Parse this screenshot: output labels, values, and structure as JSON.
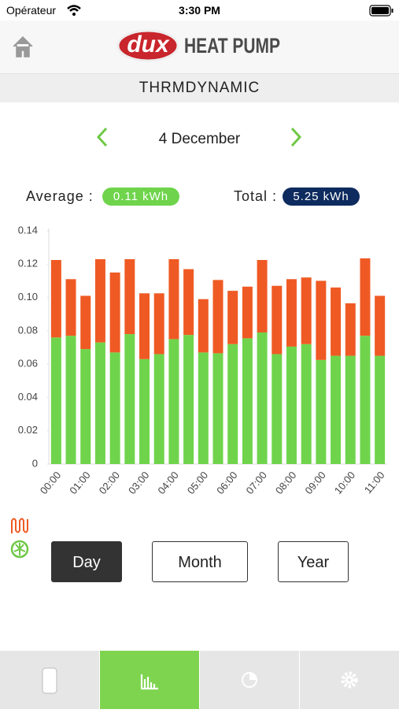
{
  "status_bar": {
    "carrier": "Opérateur",
    "time": "3:30 PM"
  },
  "header": {
    "logo": "dux",
    "title": "HEAT PUMP"
  },
  "subheader": "THRMDYNAMIC",
  "date": "4 December",
  "stats": {
    "average_label": "Average :",
    "average_value": "0.11 kWh",
    "total_label": "Total :",
    "total_value": "5.25 kWh"
  },
  "chart_data": {
    "type": "stacked_bar",
    "categories": [
      "00:00",
      null,
      "01:00",
      null,
      "02:00",
      null,
      "03:00",
      null,
      "04:00",
      null,
      "05:00",
      null,
      "06:00",
      null,
      "07:00",
      null,
      "08:00",
      null,
      "09:00",
      null,
      "10:00",
      null,
      "11:00"
    ],
    "series": [
      {
        "color": "#6fd44c",
        "values": [
          0.076,
          0.077,
          0.069,
          0.073,
          0.067,
          0.078,
          0.063,
          0.066,
          0.075,
          0.0775,
          0.067,
          0.0665,
          0.072,
          0.0755,
          0.079,
          0.066,
          0.0705,
          0.072,
          0.0625,
          0.065,
          0.065,
          0.077,
          0.065
        ]
      },
      {
        "color": "#ef5a24",
        "values": [
          0.0465,
          0.034,
          0.032,
          0.05,
          0.048,
          0.045,
          0.0395,
          0.0365,
          0.048,
          0.0395,
          0.032,
          0.044,
          0.032,
          0.031,
          0.0435,
          0.041,
          0.0405,
          0.04,
          0.0475,
          0.041,
          0.0315,
          0.0465,
          0.036
        ]
      }
    ],
    "ylim": [
      0,
      0.14
    ],
    "yticks": [
      0,
      0.02,
      0.04,
      0.06,
      0.08,
      {
        "value": 0.1,
        "label": "0.10"
      },
      0.12,
      0.14
    ],
    "grid": false
  },
  "period_buttons": [
    "Day",
    "Month",
    "Year"
  ]
}
